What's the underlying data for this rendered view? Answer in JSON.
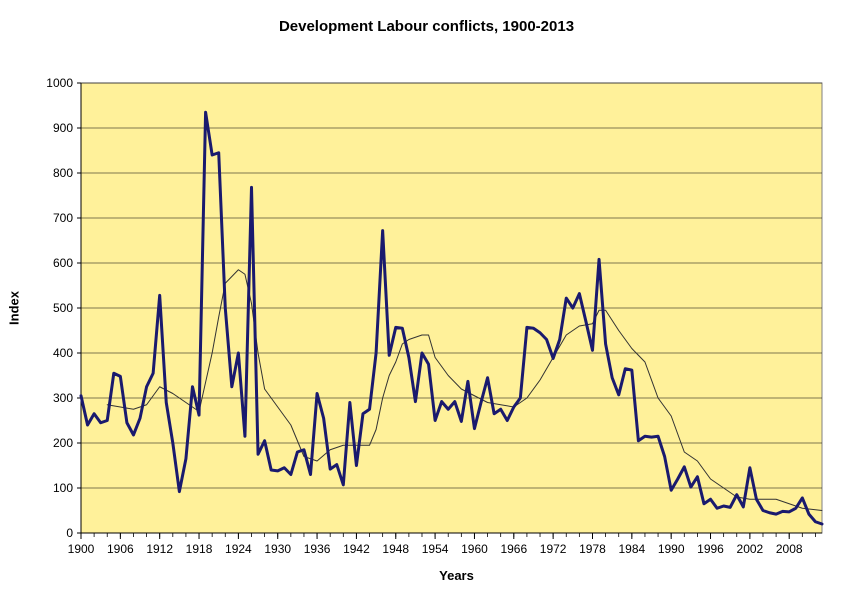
{
  "chart_data": {
    "type": "line",
    "title": "Development Labour conflicts, 1900-2013",
    "xlabel": "Years",
    "ylabel": "Index",
    "xlim": [
      1900,
      2013
    ],
    "ylim": [
      0,
      1000
    ],
    "y_ticks": [
      0,
      100,
      200,
      300,
      400,
      500,
      600,
      700,
      800,
      900,
      1000
    ],
    "x_ticks": [
      1900,
      1906,
      1912,
      1918,
      1924,
      1930,
      1936,
      1942,
      1948,
      1954,
      1960,
      1966,
      1972,
      1978,
      1984,
      1990,
      1996,
      2002,
      2008
    ],
    "grid": "horizontal",
    "plot_background": "#fff19a",
    "series": [
      {
        "color": "#1a1a6e",
        "style": "thick",
        "x": [
          1900,
          1901,
          1902,
          1903,
          1904,
          1905,
          1906,
          1907,
          1908,
          1909,
          1910,
          1911,
          1912,
          1913,
          1914,
          1915,
          1916,
          1917,
          1918,
          1919,
          1920,
          1921,
          1922,
          1923,
          1924,
          1925,
          1926,
          1927,
          1928,
          1929,
          1930,
          1931,
          1932,
          1933,
          1934,
          1935,
          1936,
          1937,
          1938,
          1939,
          1940,
          1941,
          1942,
          1943,
          1944,
          1945,
          1946,
          1947,
          1948,
          1949,
          1950,
          1951,
          1952,
          1953,
          1954,
          1955,
          1956,
          1957,
          1958,
          1959,
          1960,
          1961,
          1962,
          1963,
          1964,
          1965,
          1966,
          1967,
          1968,
          1969,
          1970,
          1971,
          1972,
          1973,
          1974,
          1975,
          1976,
          1977,
          1978,
          1979,
          1980,
          1981,
          1982,
          1983,
          1984,
          1985,
          1986,
          1987,
          1988,
          1989,
          1990,
          1991,
          1992,
          1993,
          1994,
          1995,
          1996,
          1997,
          1998,
          1999,
          2000,
          2001,
          2002,
          2003,
          2004,
          2005,
          2006,
          2007,
          2008,
          2009,
          2010,
          2011,
          2012,
          2013
        ],
        "y": [
          305,
          240,
          265,
          245,
          250,
          355,
          348,
          245,
          218,
          255,
          325,
          355,
          528,
          290,
          200,
          92,
          165,
          325,
          262,
          935,
          840,
          845,
          500,
          325,
          400,
          215,
          768,
          175,
          205,
          140,
          138,
          145,
          130,
          180,
          185,
          130,
          310,
          255,
          142,
          152,
          107,
          290,
          150,
          265,
          275,
          400,
          672,
          395,
          457,
          455,
          390,
          292,
          400,
          375,
          250,
          292,
          275,
          292,
          248,
          337,
          232,
          290,
          345,
          265,
          275,
          250,
          280,
          300,
          457,
          455,
          445,
          430,
          388,
          430,
          522,
          500,
          532,
          470,
          406,
          608,
          420,
          345,
          307,
          365,
          362,
          205,
          215,
          213,
          215,
          170,
          95,
          120,
          147,
          102,
          125,
          65,
          75,
          55,
          60,
          57,
          85,
          58,
          145,
          75,
          50,
          45,
          42,
          48,
          47,
          55,
          78,
          42,
          25,
          20
        ]
      },
      {
        "color": "#333333",
        "style": "thin",
        "x": [
          1904,
          1906,
          1908,
          1910,
          1912,
          1914,
          1916,
          1918,
          1920,
          1921,
          1922,
          1924,
          1925,
          1926,
          1927,
          1928,
          1930,
          1931,
          1932,
          1934,
          1936,
          1938,
          1940,
          1942,
          1944,
          1945,
          1946,
          1947,
          1948,
          1949,
          1950,
          1952,
          1953,
          1954,
          1956,
          1958,
          1960,
          1962,
          1964,
          1966,
          1968,
          1970,
          1972,
          1974,
          1976,
          1978,
          1979,
          1980,
          1982,
          1984,
          1986,
          1988,
          1990,
          1992,
          1994,
          1996,
          1998,
          2000,
          2002,
          2004,
          2006,
          2008,
          2010,
          2013
        ],
        "y": [
          285,
          280,
          275,
          285,
          325,
          310,
          290,
          270,
          400,
          480,
          555,
          585,
          575,
          510,
          400,
          320,
          280,
          260,
          240,
          170,
          160,
          185,
          195,
          195,
          195,
          230,
          300,
          350,
          380,
          420,
          430,
          440,
          440,
          390,
          350,
          320,
          305,
          290,
          285,
          280,
          300,
          340,
          390,
          440,
          460,
          465,
          495,
          495,
          450,
          410,
          380,
          300,
          260,
          180,
          160,
          120,
          100,
          80,
          75,
          75,
          75,
          65,
          55,
          50
        ]
      }
    ]
  }
}
